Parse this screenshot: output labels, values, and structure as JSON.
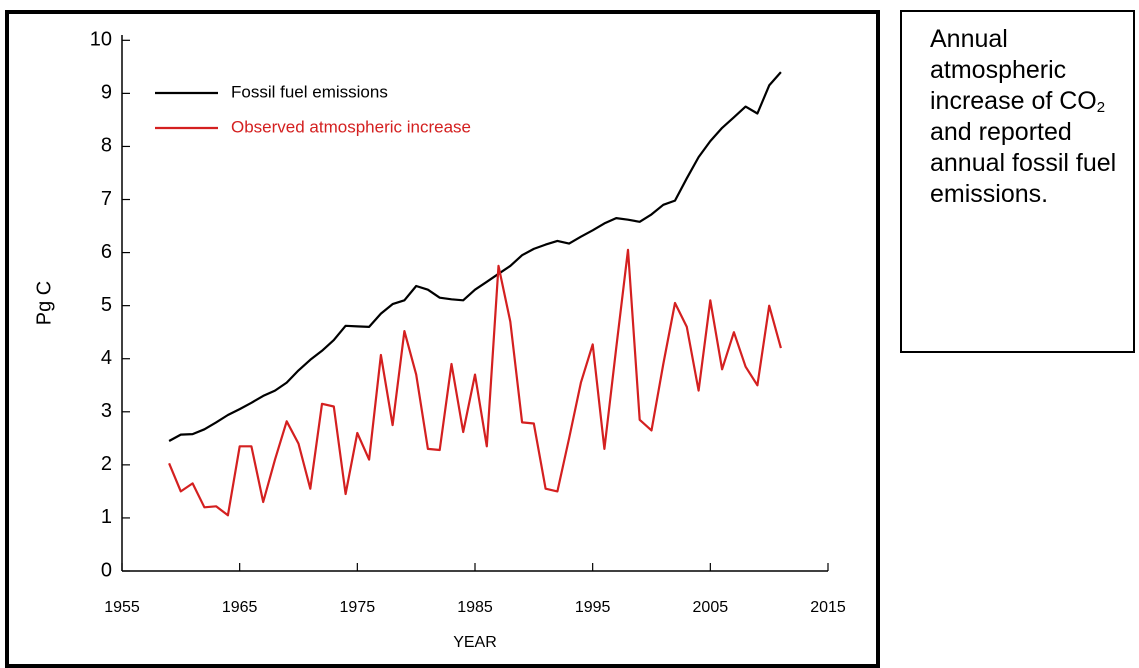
{
  "chart_data": {
    "type": "line",
    "xlabel": "YEAR",
    "ylabel": "Pg C",
    "x": [
      1959,
      1960,
      1961,
      1962,
      1963,
      1964,
      1965,
      1966,
      1967,
      1968,
      1969,
      1970,
      1971,
      1972,
      1973,
      1974,
      1975,
      1976,
      1977,
      1978,
      1979,
      1980,
      1981,
      1982,
      1983,
      1984,
      1985,
      1986,
      1987,
      1988,
      1989,
      1990,
      1991,
      1992,
      1993,
      1994,
      1995,
      1996,
      1997,
      1998,
      1999,
      2000,
      2001,
      2002,
      2003,
      2004,
      2005,
      2006,
      2007,
      2008,
      2009,
      2010,
      2011
    ],
    "series": [
      {
        "name": "Fossil fuel emissions",
        "color": "#000000",
        "values": [
          2.45,
          2.57,
          2.58,
          2.67,
          2.8,
          2.94,
          3.05,
          3.17,
          3.3,
          3.4,
          3.55,
          3.78,
          3.98,
          4.15,
          4.35,
          4.62,
          4.61,
          4.6,
          4.85,
          5.03,
          5.1,
          5.37,
          5.3,
          5.15,
          5.12,
          5.1,
          5.3,
          5.45,
          5.6,
          5.75,
          5.95,
          6.07,
          6.15,
          6.22,
          6.17,
          6.3,
          6.42,
          6.55,
          6.65,
          6.62,
          6.58,
          6.72,
          6.9,
          6.98,
          7.4,
          7.8,
          8.1,
          8.35,
          8.55,
          8.75,
          8.62,
          9.15,
          9.4
        ]
      },
      {
        "name": "Observed atmospheric increase",
        "color": "#d42020",
        "values": [
          2.03,
          1.5,
          1.65,
          1.2,
          1.22,
          1.05,
          2.35,
          2.35,
          1.3,
          2.1,
          2.82,
          2.4,
          1.55,
          3.15,
          3.1,
          1.45,
          2.6,
          2.1,
          4.07,
          2.75,
          4.52,
          3.7,
          2.3,
          2.28,
          3.9,
          2.62,
          3.7,
          2.35,
          5.75,
          4.7,
          2.8,
          2.78,
          1.55,
          1.5,
          2.5,
          3.55,
          4.27,
          2.3,
          4.2,
          6.05,
          2.85,
          2.65,
          3.9,
          5.05,
          4.6,
          3.4,
          5.1,
          3.8,
          4.5,
          3.85,
          3.5,
          5.0,
          4.2
        ]
      }
    ],
    "xlim": [
      1955,
      2015
    ],
    "xticks": [
      1955,
      1965,
      1975,
      1985,
      1995,
      2005,
      2015
    ],
    "ylim": [
      0,
      10.1
    ],
    "yticks": [
      0,
      1,
      2,
      3,
      4,
      5,
      6,
      7,
      8,
      9,
      10
    ],
    "legend": "upper left"
  },
  "caption": {
    "parts": [
      "Annual atmospheric increase of CO",
      "2",
      " and reported annual fossil fuel emissions."
    ]
  }
}
